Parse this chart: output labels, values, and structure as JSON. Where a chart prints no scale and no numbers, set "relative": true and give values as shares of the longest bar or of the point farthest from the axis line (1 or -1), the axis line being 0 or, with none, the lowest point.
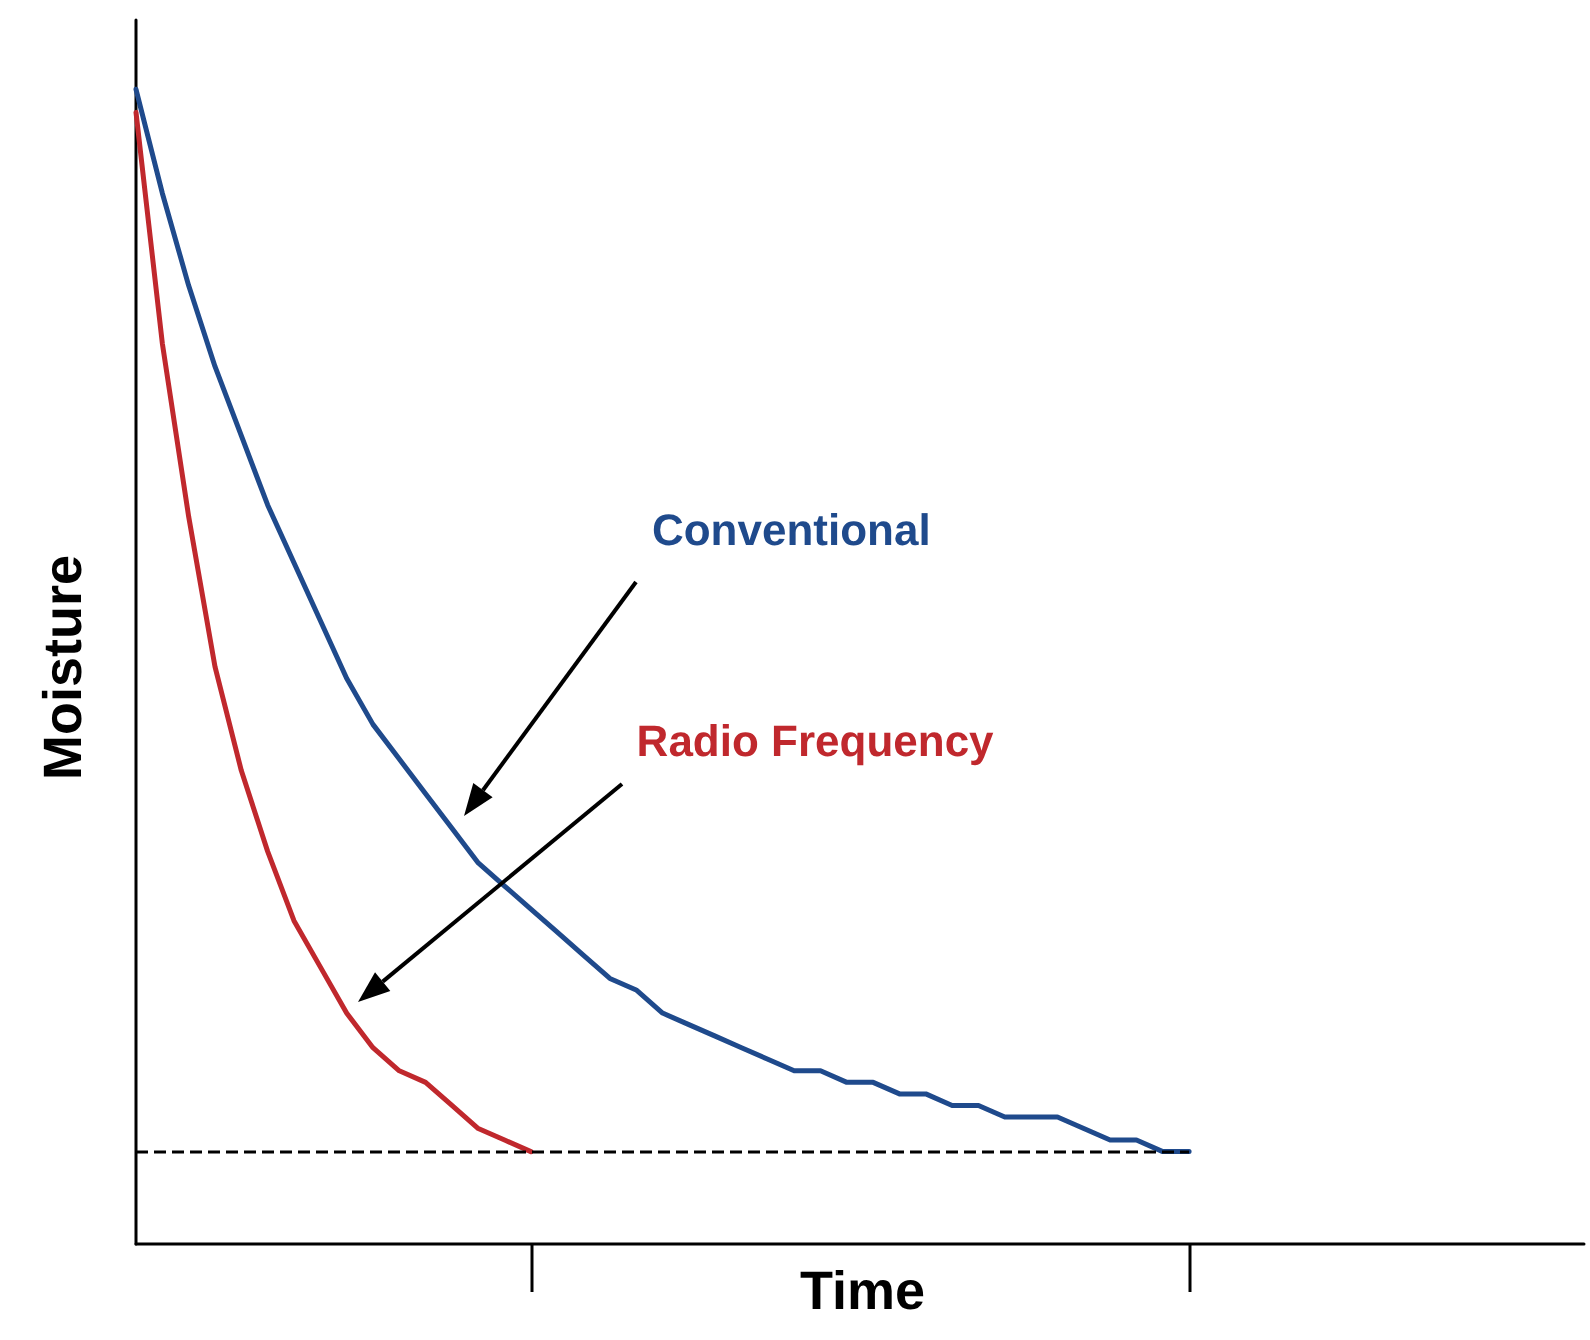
{
  "chart_data": {
    "type": "line",
    "relative": true,
    "xlabel": "Time",
    "ylabel": "Moisture",
    "categories": [
      null,
      null,
      null,
      null,
      null,
      null,
      null,
      null,
      null,
      null,
      null,
      null,
      null,
      null,
      null,
      null,
      null,
      null,
      null,
      null,
      null,
      null,
      null,
      null,
      null,
      null,
      null,
      null,
      null,
      null,
      null,
      null,
      null,
      null,
      null,
      null,
      null,
      null,
      null,
      null,
      null,
      null,
      null,
      null,
      null,
      null,
      null,
      null,
      null,
      null,
      null,
      null,
      null,
      null,
      null,
      null
    ],
    "series": [
      {
        "name": "Conventional",
        "color": "#1f4a8c",
        "values": [
          1.0,
          0.91,
          0.83,
          0.76,
          0.7,
          0.64,
          0.59,
          0.54,
          0.49,
          0.45,
          0.42,
          0.39,
          0.36,
          0.33,
          0.31,
          0.29,
          0.27,
          0.25,
          0.23,
          0.22,
          0.2,
          0.19,
          0.18,
          0.17,
          0.16,
          0.15,
          0.15,
          0.14,
          0.14,
          0.13,
          0.13,
          0.12,
          0.12,
          0.11,
          0.11,
          0.11,
          0.1,
          0.09,
          0.09,
          0.08,
          0.08,
          null,
          null,
          null,
          null,
          null,
          null,
          null,
          null,
          null,
          null,
          null,
          null,
          null,
          null,
          null
        ]
      },
      {
        "name": "Radio Frequency",
        "color": "#c0282d",
        "values": [
          0.98,
          0.78,
          0.63,
          0.5,
          0.41,
          0.34,
          0.28,
          0.24,
          0.2,
          0.17,
          0.15,
          0.14,
          0.12,
          0.1,
          0.09,
          0.08,
          null,
          null,
          null,
          null,
          null,
          null,
          null,
          null,
          null,
          null,
          null,
          null,
          null,
          null,
          null,
          null,
          null,
          null,
          null,
          null,
          null,
          null,
          null,
          null,
          null,
          null,
          null,
          null,
          null,
          null,
          null,
          null,
          null,
          null,
          null,
          null,
          null,
          null,
          null,
          null
        ]
      }
    ],
    "ref_lines": [
      {
        "axis": "y",
        "value": 0.08,
        "color": "#000000",
        "line_style": "dashed"
      }
    ],
    "grid": false,
    "marker": "none",
    "line_style": "solid"
  }
}
